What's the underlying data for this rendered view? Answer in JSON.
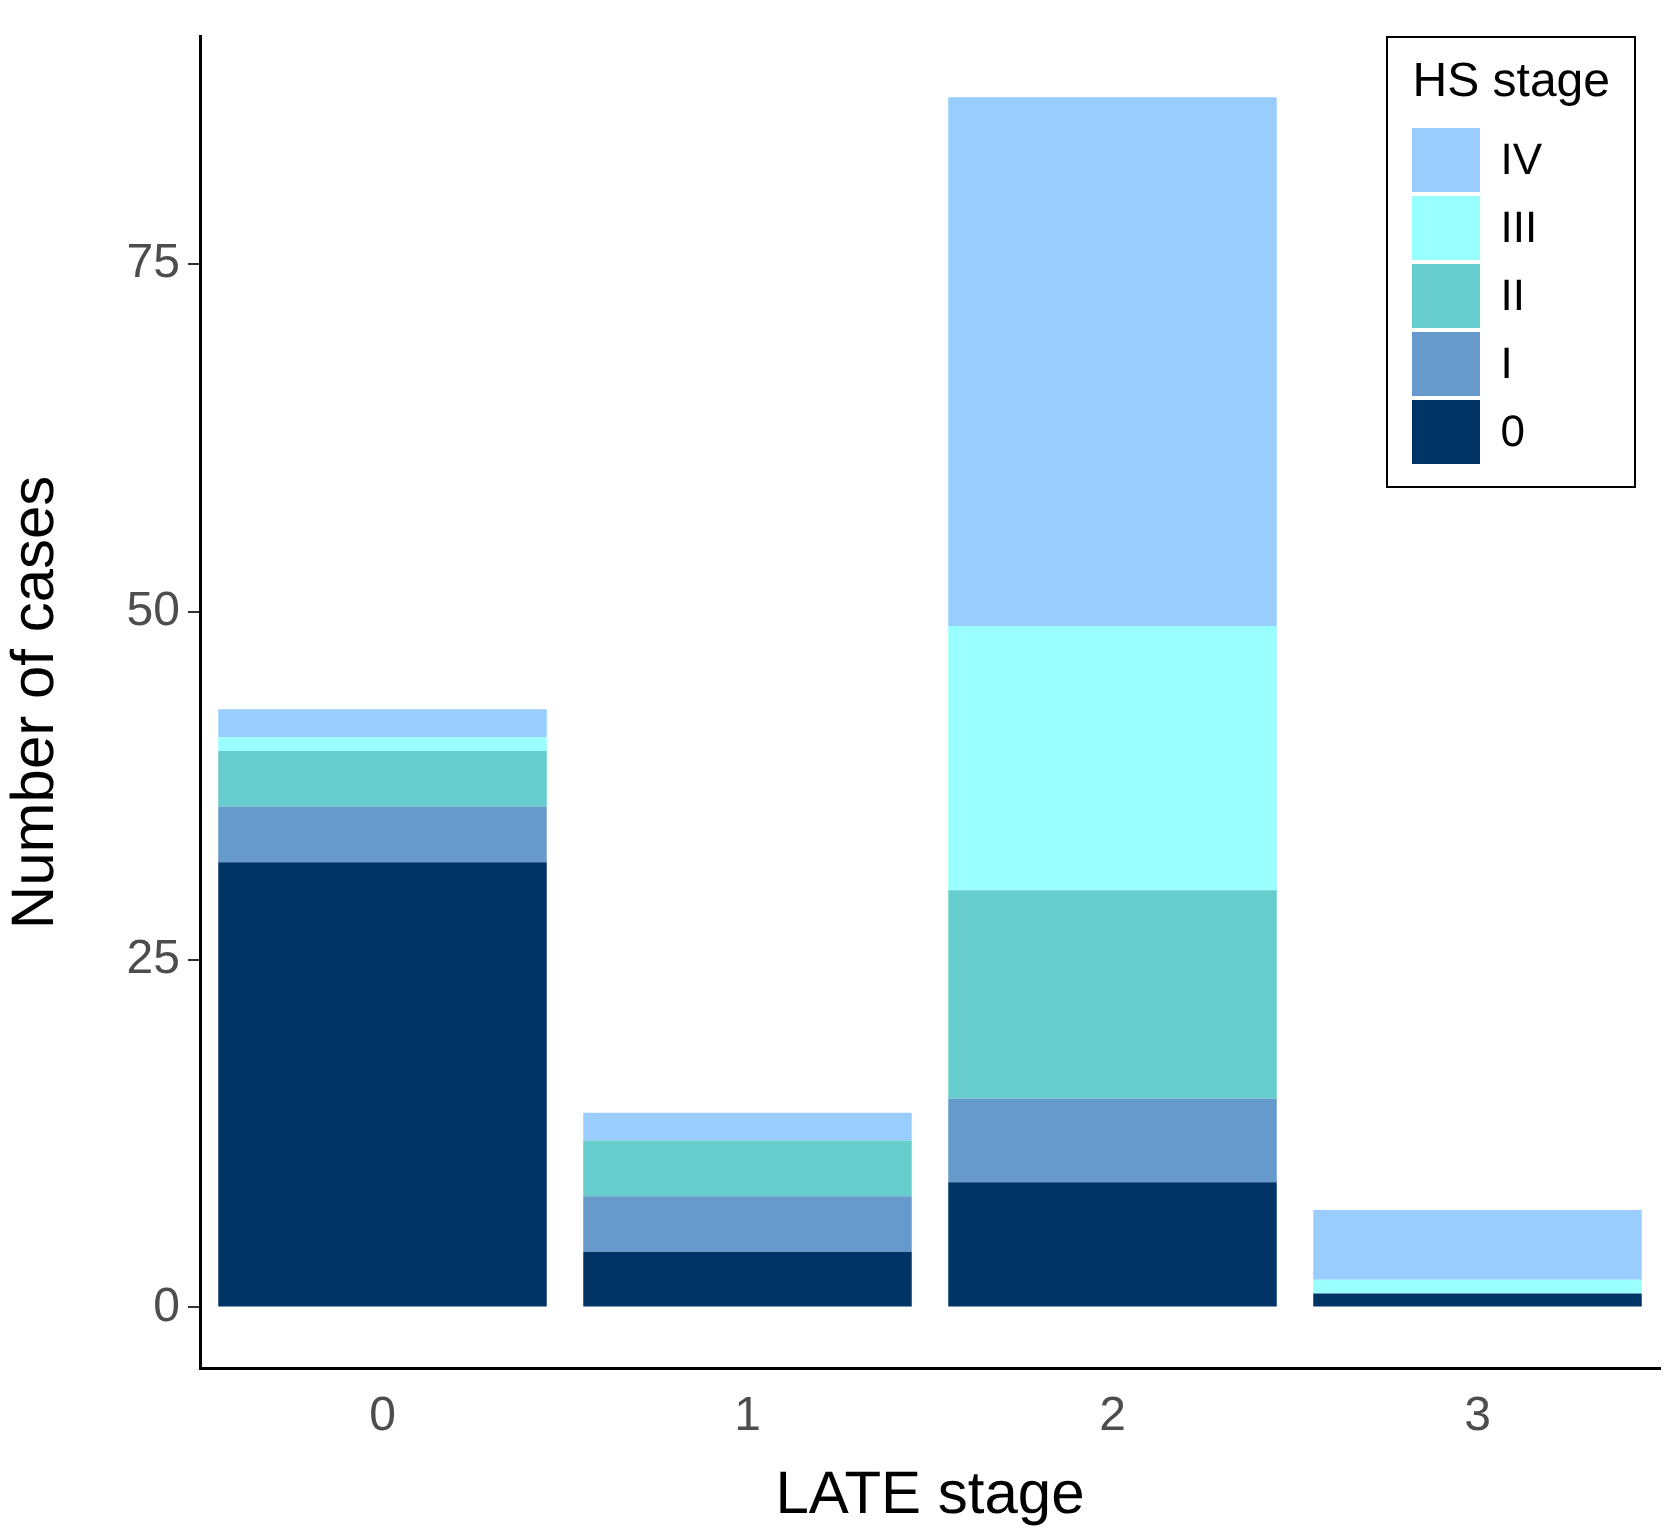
{
  "chart_data": {
    "type": "bar",
    "stacked": true,
    "xlabel": "LATE stage",
    "ylabel": "Number of cases",
    "legend_title": "HS stage",
    "legend": "top right",
    "categories": [
      "0",
      "1",
      "2",
      "3"
    ],
    "ylim": [
      -4.35,
      91.35
    ],
    "yticks": [
      0,
      25,
      50,
      75
    ],
    "series": [
      {
        "name": "0",
        "color": "#003366",
        "values": [
          32,
          4,
          9,
          1
        ]
      },
      {
        "name": "I",
        "color": "#6699cc",
        "values": [
          4,
          4,
          6,
          0
        ]
      },
      {
        "name": "II",
        "color": "#66cccc",
        "values": [
          4,
          4,
          15,
          0
        ]
      },
      {
        "name": "III",
        "color": "#99ffff",
        "values": [
          1,
          0,
          19,
          1
        ]
      },
      {
        "name": "IV",
        "color": "#99ccff",
        "values": [
          2,
          2,
          38,
          5
        ]
      }
    ]
  }
}
